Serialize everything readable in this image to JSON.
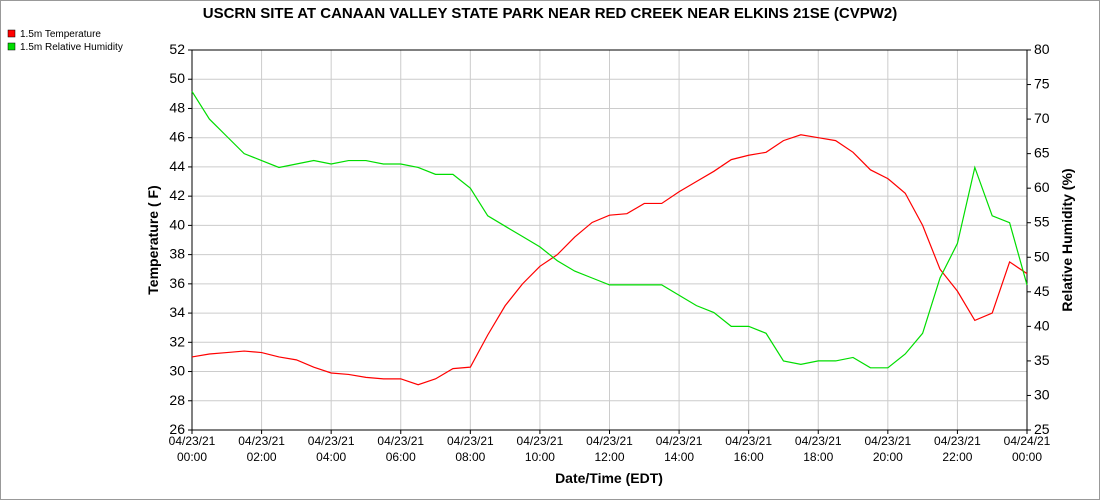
{
  "chart_data": {
    "type": "line",
    "title": "USCRN SITE AT CANAAN VALLEY STATE PARK NEAR RED CREEK NEAR ELKINS 21SE (CVPW2)",
    "x_label": "Date/Time (EDT)",
    "y_label": "Temperature ( F)",
    "y2_label": "Relative Humidity (%)",
    "x": [
      0,
      0.5,
      1,
      1.5,
      2,
      2.5,
      3,
      3.5,
      4,
      4.5,
      5,
      5.5,
      6,
      6.5,
      7,
      7.5,
      8,
      8.5,
      9,
      9.5,
      10,
      10.5,
      11,
      11.5,
      12,
      12.5,
      13,
      13.5,
      14,
      14.5,
      15,
      15.5,
      16,
      16.5,
      17,
      17.5,
      18,
      18.5,
      19,
      19.5,
      20,
      20.5,
      21,
      21.5,
      22,
      22.5,
      23,
      23.5,
      24
    ],
    "series": [
      {
        "name": "1.5m Temperature",
        "color": "#ff0000",
        "values": [
          31.0,
          31.2,
          31.3,
          31.4,
          31.3,
          31.0,
          30.8,
          30.3,
          29.9,
          29.8,
          29.6,
          29.5,
          29.5,
          29.1,
          29.5,
          30.2,
          30.3,
          32.5,
          34.5,
          36.0,
          37.2,
          38.0,
          39.2,
          40.2,
          40.7,
          40.8,
          41.5,
          41.5,
          42.3,
          43.0,
          43.7,
          44.5,
          44.8,
          45.0,
          45.8,
          46.2,
          46.0,
          45.8,
          45.0,
          43.8,
          43.2,
          42.2,
          40.0,
          37.0,
          35.5,
          33.5,
          34.0,
          37.5,
          36.7
        ]
      },
      {
        "name": "1.5m Relative Humidity",
        "color": "#00dd00",
        "axis": "y2",
        "values": [
          74,
          70,
          67.5,
          65,
          64,
          63,
          63.5,
          64,
          63.5,
          64,
          64,
          63.5,
          63.5,
          63,
          62,
          62,
          60,
          56,
          54.5,
          53,
          51.5,
          49.5,
          48,
          47,
          46,
          46,
          46,
          46,
          44.5,
          43,
          42,
          40,
          40,
          39,
          35,
          34.5,
          35,
          35,
          35.5,
          34,
          34,
          36,
          39,
          47,
          52,
          63,
          56,
          55,
          46
        ]
      }
    ],
    "xlim": [
      0,
      24
    ],
    "xticks": [
      {
        "value": 0,
        "label": [
          "04/23/21",
          "00:00"
        ]
      },
      {
        "value": 2,
        "label": [
          "04/23/21",
          "02:00"
        ]
      },
      {
        "value": 4,
        "label": [
          "04/23/21",
          "04:00"
        ]
      },
      {
        "value": 6,
        "label": [
          "04/23/21",
          "06:00"
        ]
      },
      {
        "value": 8,
        "label": [
          "04/23/21",
          "08:00"
        ]
      },
      {
        "value": 10,
        "label": [
          "04/23/21",
          "10:00"
        ]
      },
      {
        "value": 12,
        "label": [
          "04/23/21",
          "12:00"
        ]
      },
      {
        "value": 14,
        "label": [
          "04/23/21",
          "14:00"
        ]
      },
      {
        "value": 16,
        "label": [
          "04/23/21",
          "16:00"
        ]
      },
      {
        "value": 18,
        "label": [
          "04/23/21",
          "18:00"
        ]
      },
      {
        "value": 20,
        "label": [
          "04/23/21",
          "20:00"
        ]
      },
      {
        "value": 22,
        "label": [
          "04/23/21",
          "22:00"
        ]
      },
      {
        "value": 24,
        "label": [
          "04/24/21",
          "00:00"
        ]
      }
    ],
    "ylim": [
      26,
      52
    ],
    "yticks": [
      26,
      28,
      30,
      32,
      34,
      36,
      38,
      40,
      42,
      44,
      46,
      48,
      50,
      52
    ],
    "y2lim": [
      25,
      80
    ],
    "y2ticks": [
      25,
      30,
      35,
      40,
      45,
      50,
      55,
      60,
      65,
      70,
      75,
      80
    ],
    "grid": true,
    "legend": "top-left"
  }
}
